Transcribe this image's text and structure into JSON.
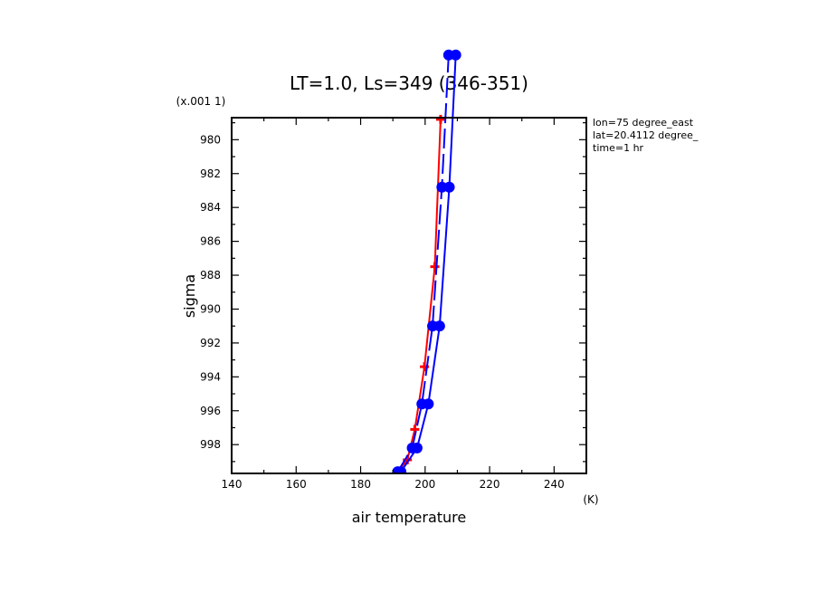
{
  "chart_data": {
    "type": "line",
    "title": "LT=1.0, Ls=349 (346-351)",
    "xlabel": "air temperature",
    "ylabel": "sigma",
    "x_unit": "(K)",
    "y_scale_note": "(x.001 1)",
    "xlim": [
      140,
      250
    ],
    "ylim": [
      999.7,
      978.7
    ],
    "y_inverted": true,
    "x_ticks": [
      140,
      160,
      180,
      200,
      220,
      240
    ],
    "x_tick_labels": [
      "140",
      "160",
      "180",
      "200",
      "220",
      "240"
    ],
    "y_ticks": [
      980,
      982,
      984,
      986,
      988,
      990,
      992,
      994,
      996,
      998
    ],
    "y_tick_labels": [
      "980",
      "982",
      "984",
      "986",
      "988",
      "990",
      "992",
      "994",
      "996",
      "998"
    ],
    "info": [
      "lon=75 degree_east",
      "lat=20.4112 degree_",
      "time=1 hr"
    ],
    "series": [
      {
        "color": "#ff0000",
        "line_style": "solid",
        "marker": "plus",
        "points": [
          {
            "x": 191.5,
            "y": 999.6
          },
          {
            "x": 194.5,
            "y": 998.9
          },
          {
            "x": 196.8,
            "y": 997.1
          },
          {
            "x": 199.8,
            "y": 993.4
          },
          {
            "x": 203.0,
            "y": 987.5
          },
          {
            "x": 204.8,
            "y": 978.8
          }
        ]
      },
      {
        "color": "#0000ff",
        "line_style": "solid",
        "marker": "circle",
        "points": [
          {
            "x": 192.5,
            "y": 999.6
          },
          {
            "x": 197.5,
            "y": 998.2
          },
          {
            "x": 201.0,
            "y": 995.6
          },
          {
            "x": 204.5,
            "y": 991.0
          },
          {
            "x": 207.5,
            "y": 982.8
          },
          {
            "x": 209.5,
            "y": 975.0
          }
        ]
      },
      {
        "color": "#0000ff",
        "line_style": "dashed",
        "marker": "circle",
        "points": [
          {
            "x": 191.5,
            "y": 999.6
          },
          {
            "x": 196.0,
            "y": 998.2
          },
          {
            "x": 199.0,
            "y": 995.6
          },
          {
            "x": 202.3,
            "y": 991.0
          },
          {
            "x": 205.2,
            "y": 982.8
          },
          {
            "x": 207.3,
            "y": 975.0
          }
        ]
      }
    ]
  }
}
